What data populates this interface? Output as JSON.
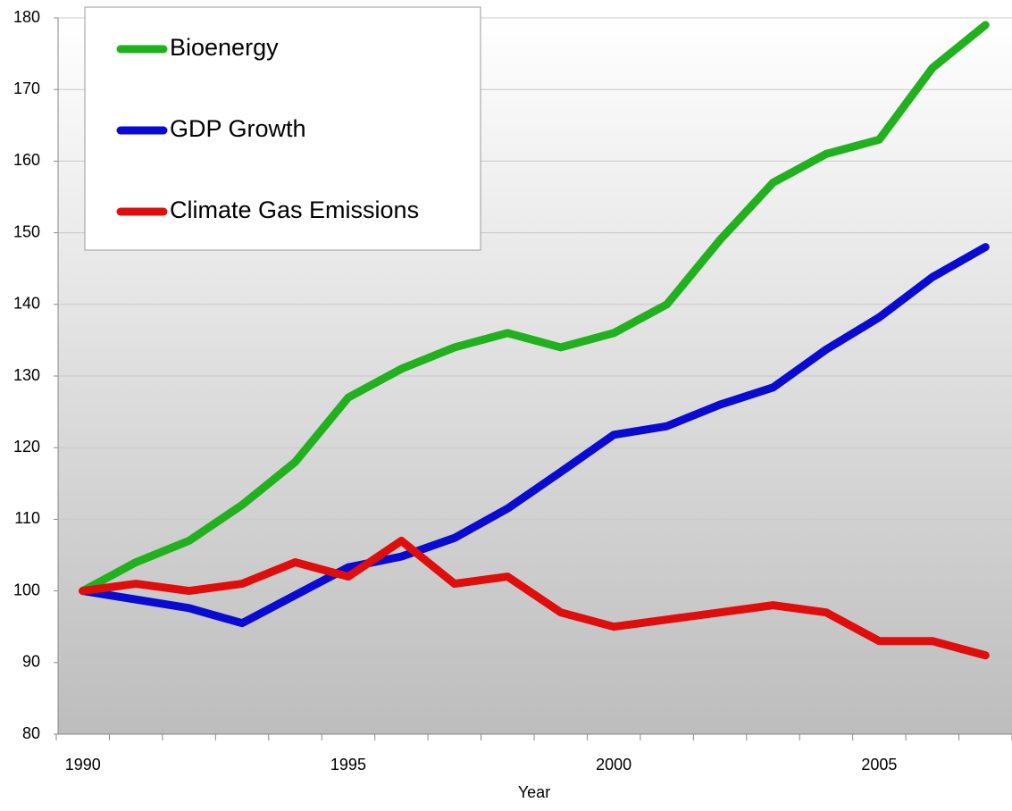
{
  "chart_data": {
    "type": "line",
    "x_label": "Year",
    "categories": [
      "1990",
      null,
      null,
      null,
      null,
      "1995",
      null,
      null,
      null,
      null,
      "2000",
      null,
      null,
      null,
      null,
      "2005",
      null,
      null
    ],
    "series": [
      {
        "name": "Bioenergy",
        "color": "#22b11e",
        "values": [
          100,
          104,
          107,
          112,
          118,
          127,
          131,
          134,
          136,
          134,
          136,
          140,
          149,
          157,
          161,
          163,
          173,
          179
        ]
      },
      {
        "name": "GDP Growth",
        "color": "#0a0ad2",
        "values": [
          100,
          98.8,
          97.6,
          95.5,
          99.4,
          103.3,
          104.8,
          107.4,
          111.5,
          116.6,
          121.8,
          123,
          126,
          128.4,
          133.7,
          138.2,
          143.8,
          148
        ]
      },
      {
        "name": "Climate Gas Emissions",
        "color": "#e00d0d",
        "values": [
          100,
          101,
          100,
          101,
          104,
          102,
          107,
          101,
          102,
          97,
          95,
          96,
          97,
          98,
          97,
          93,
          93,
          91
        ]
      }
    ],
    "ylim": [
      80,
      180
    ],
    "yticks": [
      80,
      90,
      100,
      110,
      120,
      130,
      140,
      150,
      160,
      170,
      180
    ],
    "grid": true,
    "legend": "upper left"
  }
}
